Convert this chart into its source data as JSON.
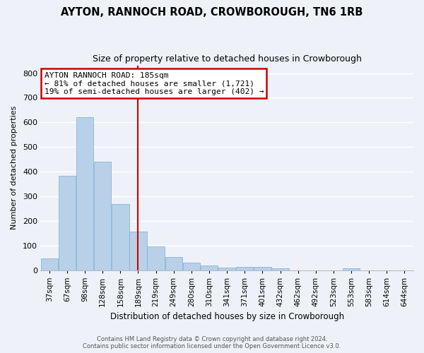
{
  "title": "AYTON, RANNOCH ROAD, CROWBOROUGH, TN6 1RB",
  "subtitle": "Size of property relative to detached houses in Crowborough",
  "xlabel": "Distribution of detached houses by size in Crowborough",
  "ylabel": "Number of detached properties",
  "bar_color": "#b8d0e8",
  "bar_edge_color": "#7aafd4",
  "background_color": "#eef2f8",
  "grid_color": "#ffffff",
  "categories": [
    "37sqm",
    "67sqm",
    "98sqm",
    "128sqm",
    "158sqm",
    "189sqm",
    "219sqm",
    "249sqm",
    "280sqm",
    "310sqm",
    "341sqm",
    "371sqm",
    "401sqm",
    "432sqm",
    "462sqm",
    "492sqm",
    "523sqm",
    "553sqm",
    "583sqm",
    "614sqm",
    "644sqm"
  ],
  "values": [
    48,
    383,
    622,
    440,
    268,
    157,
    96,
    52,
    30,
    18,
    10,
    12,
    12,
    7,
    0,
    0,
    0,
    8,
    0,
    0,
    0
  ],
  "vline_x": 5,
  "vline_color": "#cc0000",
  "ylim": [
    0,
    830
  ],
  "yticks": [
    0,
    100,
    200,
    300,
    400,
    500,
    600,
    700,
    800
  ],
  "annotation_title": "AYTON RANNOCH ROAD: 185sqm",
  "annotation_line1": "← 81% of detached houses are smaller (1,721)",
  "annotation_line2": "19% of semi-detached houses are larger (402) →",
  "annotation_box_color": "#ffffff",
  "annotation_box_edge_color": "#cc0000",
  "footer_line1": "Contains HM Land Registry data © Crown copyright and database right 2024.",
  "footer_line2": "Contains public sector information licensed under the Open Government Licence v3.0."
}
